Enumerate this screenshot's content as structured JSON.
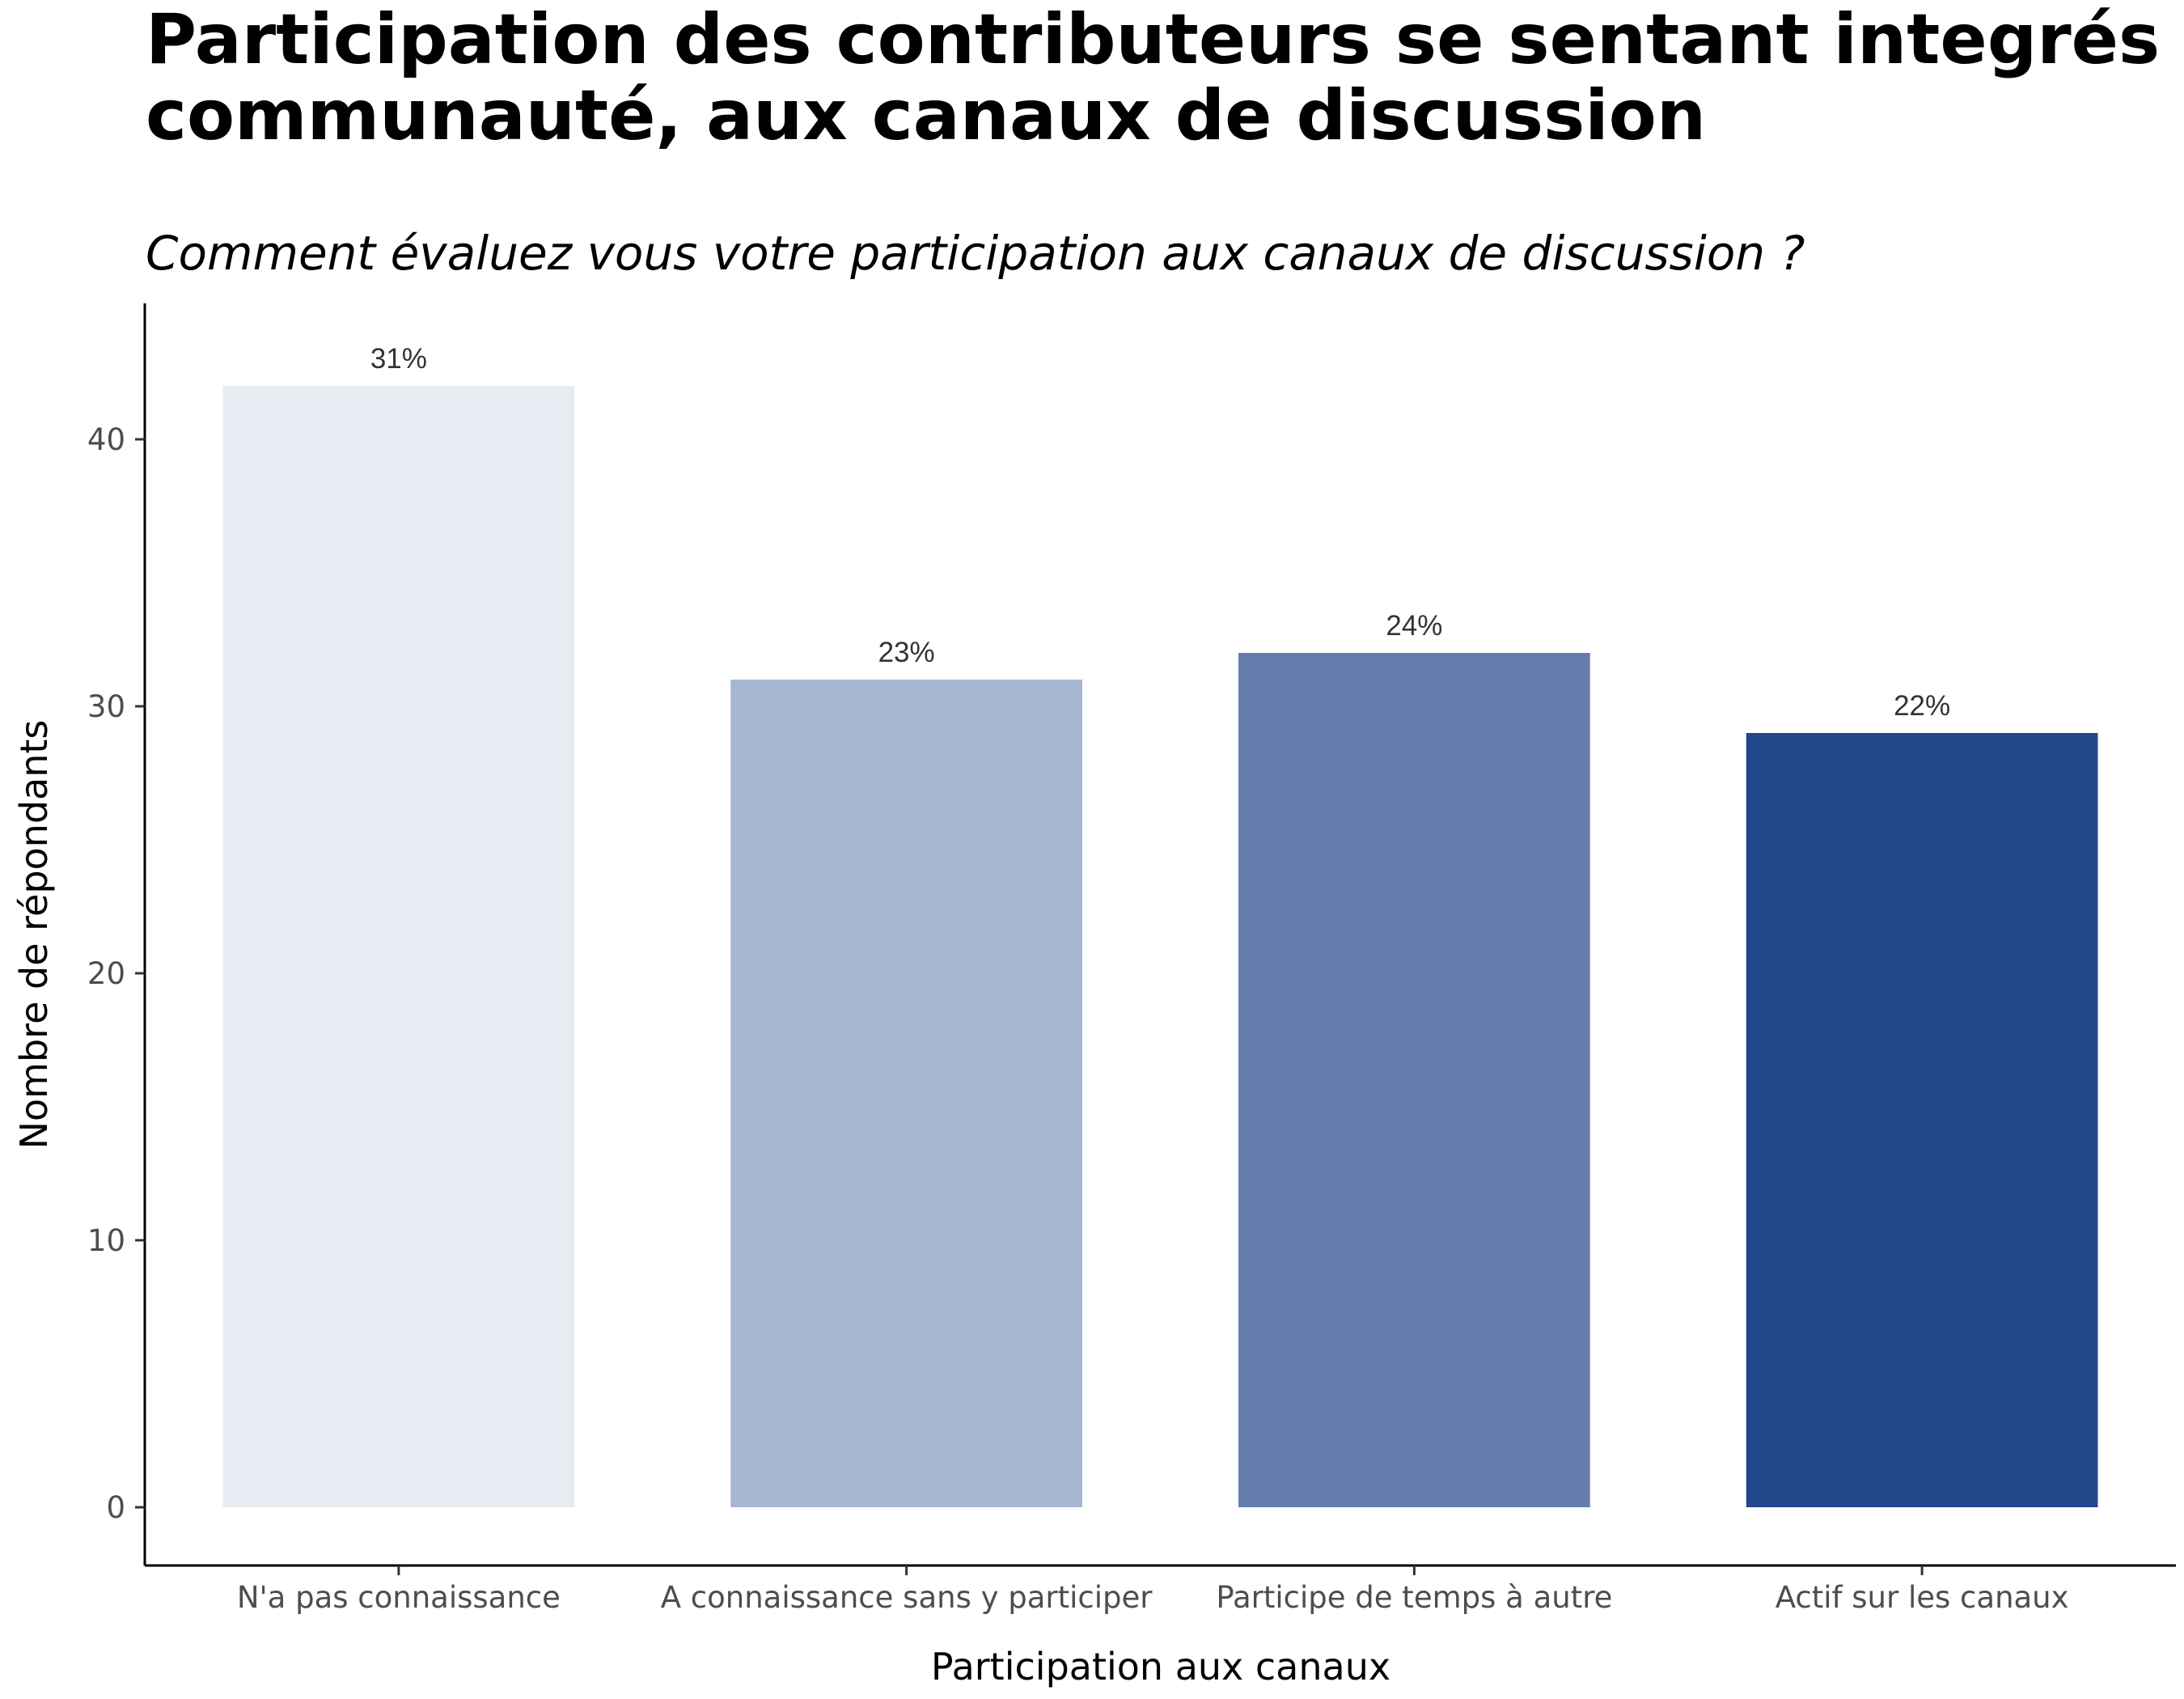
{
  "chart_data": {
    "type": "bar",
    "title": "Participation des contributeurs se sentant integrés à la communauté, aux canaux de discussion",
    "title_lines": [
      "Participation des contributeurs se sentant integrés à la",
      "communauté, aux canaux de discussion"
    ],
    "subtitle": "Comment évaluez vous votre participation aux canaux de discussion ?",
    "xlabel": "Participation aux canaux",
    "ylabel": "Nombre de répondants",
    "categories": [
      "N'a pas connaissance",
      "A connaissance sans y participer",
      "Participe de temps à autre",
      "Actif sur les canaux"
    ],
    "values": [
      42,
      31,
      32,
      29
    ],
    "data_labels": [
      "31%",
      "23%",
      "24%",
      "22%"
    ],
    "colors": [
      "#e7ecf3",
      "#a6b5d1",
      "#657dac",
      "#22478a"
    ],
    "y_ticks": [
      0,
      10,
      20,
      30,
      40
    ],
    "ylim": [
      0,
      44
    ],
    "grid": false,
    "legend": "none"
  }
}
